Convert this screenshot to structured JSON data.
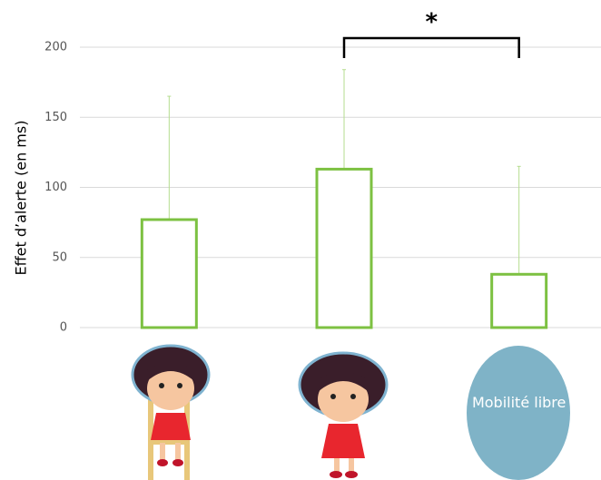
{
  "chart_data": {
    "type": "bar",
    "y_label": "Effet d’alerte (en ms)",
    "categories": [
      null,
      null,
      "Mobilité libre"
    ],
    "values": [
      77,
      113,
      38
    ],
    "errors": [
      88,
      71,
      77
    ],
    "color": "#7dc142",
    "error_color": "#b5dd8f",
    "ylim": [
      0,
      200
    ],
    "yticks": [
      0,
      50,
      100,
      150,
      200
    ],
    "grid": true,
    "significance_label": "*"
  }
}
